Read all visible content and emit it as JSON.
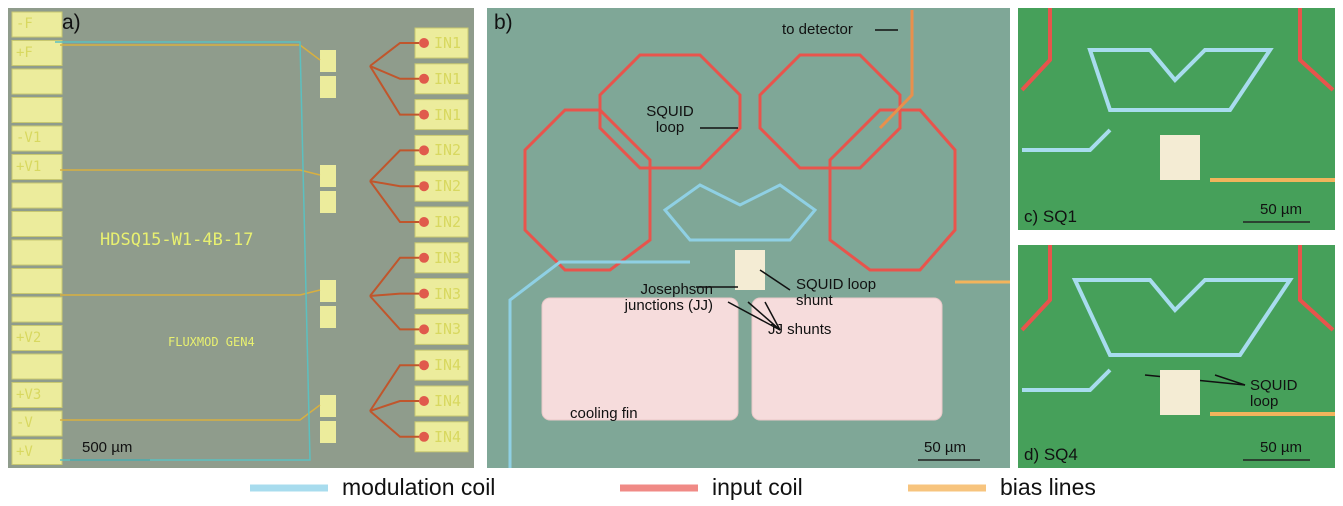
{
  "panel_a": {
    "label": "a)",
    "chip_id": "HDSQ15-W1-4B-17",
    "chip_name": "FLUXMOD GEN4",
    "scale_bar": "500 µm",
    "left_pads": [
      "-F",
      "+F",
      "-V1",
      "+V1",
      "+V2",
      "+V3",
      "-V",
      "+V"
    ],
    "right_pads": [
      "IN1",
      "IN1",
      "IN1",
      "IN2",
      "IN2",
      "IN2",
      "IN3",
      "IN3",
      "IN3",
      "IN4",
      "IN4",
      "IN4"
    ]
  },
  "panel_b": {
    "label": "b)",
    "to_detector": "to detector",
    "squid_loop": "SQUID loop",
    "squid_loop_shunt": "SQUID loop shunt",
    "josephson_junctions": "Josephson junctions (JJ)",
    "jj_shunts": "JJ shunts",
    "cooling_fin": "cooling fin",
    "scale_bar": "50 µm"
  },
  "panel_c": {
    "label": "c) SQ1",
    "scale_bar": "50 µm"
  },
  "panel_d": {
    "label": "d) SQ4",
    "squid_loop": "SQUID loop",
    "scale_bar": "50 µm"
  },
  "legend": [
    {
      "name": "modulation coil",
      "color": "#a8dcee"
    },
    {
      "name": "input coil",
      "color": "#f08a86"
    },
    {
      "name": "bias lines",
      "color": "#f7c47e"
    }
  ]
}
